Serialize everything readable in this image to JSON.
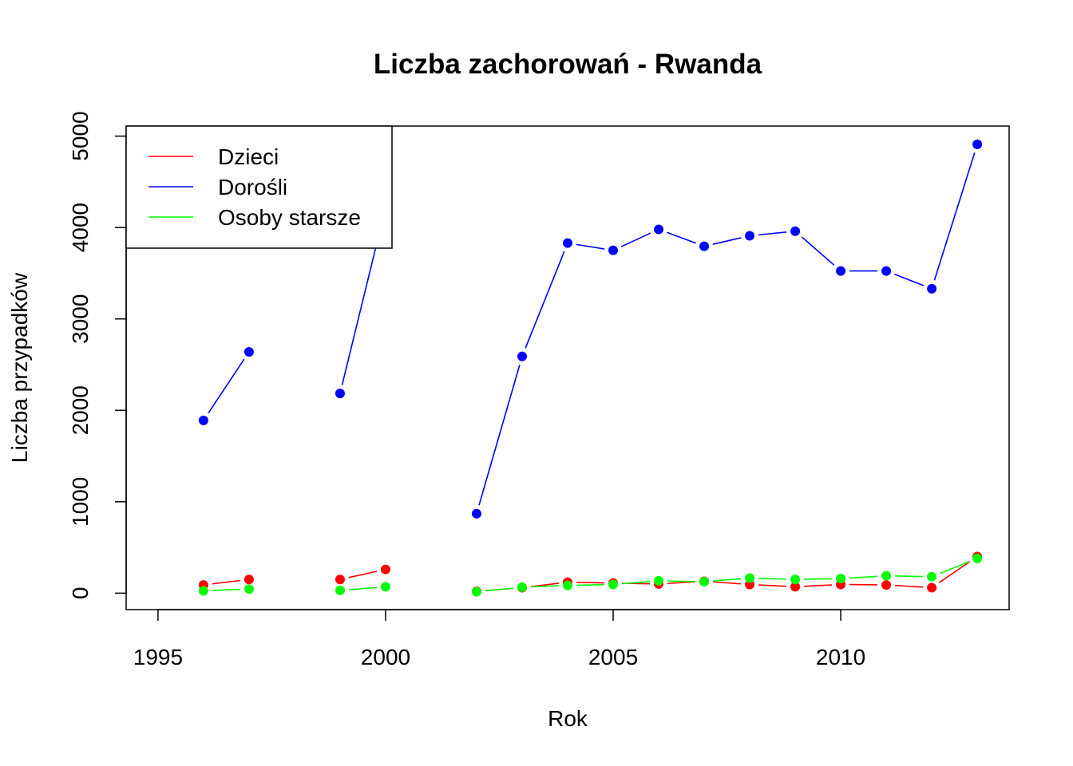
{
  "chart_data": {
    "type": "line",
    "title": "Liczba zachorowań -  Rwanda",
    "xlabel": "Rok",
    "ylabel": "Liczba przypadków",
    "xlim": [
      1994.3,
      2013.7
    ],
    "ylim": [
      -180,
      5110
    ],
    "xticks": [
      1995,
      2000,
      2005,
      2010
    ],
    "yticks": [
      0,
      1000,
      2000,
      3000,
      4000,
      5000
    ],
    "legend_position": "top-left",
    "series": [
      {
        "name": "Dzieci",
        "color": "#ff0000",
        "points": [
          [
            1996,
            90
          ],
          [
            1997,
            150
          ],
          [
            1999,
            150
          ],
          [
            2000,
            260
          ],
          [
            2002,
            20
          ],
          [
            2003,
            60
          ],
          [
            2004,
            120
          ],
          [
            2005,
            110
          ],
          [
            2006,
            100
          ],
          [
            2007,
            130
          ],
          [
            2008,
            95
          ],
          [
            2009,
            70
          ],
          [
            2010,
            95
          ],
          [
            2011,
            90
          ],
          [
            2012,
            60
          ],
          [
            2013,
            400
          ]
        ]
      },
      {
        "name": "Dorośli",
        "color": "#0000ff",
        "points": [
          [
            1996,
            1890
          ],
          [
            1997,
            2640
          ],
          [
            1999,
            2185
          ],
          [
            2000,
            4220
          ],
          [
            2002,
            870
          ],
          [
            2003,
            2590
          ],
          [
            2004,
            3830
          ],
          [
            2005,
            3750
          ],
          [
            2006,
            3980
          ],
          [
            2007,
            3795
          ],
          [
            2008,
            3910
          ],
          [
            2009,
            3960
          ],
          [
            2010,
            3525
          ],
          [
            2011,
            3525
          ],
          [
            2012,
            3330
          ],
          [
            2013,
            4910
          ]
        ]
      },
      {
        "name": "Osoby starsze",
        "color": "#00ff00",
        "points": [
          [
            1996,
            25
          ],
          [
            1997,
            45
          ],
          [
            1999,
            30
          ],
          [
            2000,
            70
          ],
          [
            2002,
            15
          ],
          [
            2003,
            65
          ],
          [
            2004,
            85
          ],
          [
            2005,
            95
          ],
          [
            2006,
            135
          ],
          [
            2007,
            125
          ],
          [
            2008,
            165
          ],
          [
            2009,
            150
          ],
          [
            2010,
            160
          ],
          [
            2011,
            190
          ],
          [
            2012,
            180
          ],
          [
            2013,
            380
          ]
        ]
      }
    ]
  }
}
